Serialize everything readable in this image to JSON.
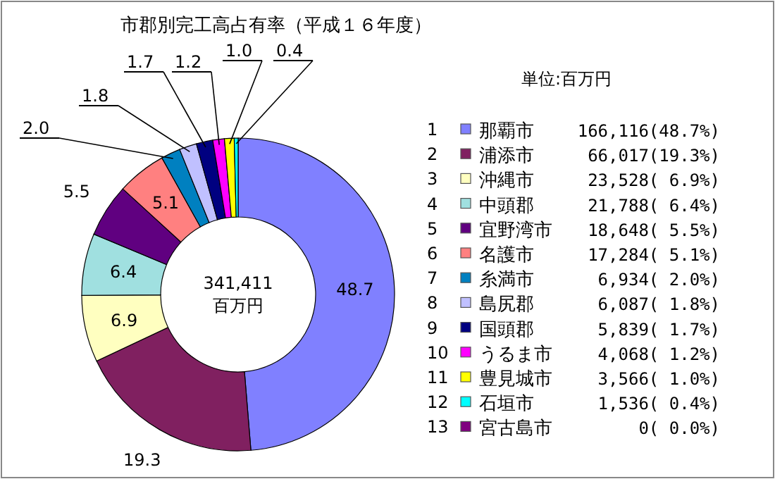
{
  "chart_data": {
    "type": "donut",
    "title": "市郡別完工高占有率（平成１６年度）",
    "categories": [
      "那覇市",
      "浦添市",
      "沖縄市",
      "中頭郡",
      "宜野湾市",
      "名護市",
      "糸満市",
      "島尻郡",
      "国頭郡",
      "うるま市",
      "豊見城市",
      "石垣市",
      "宮古島市"
    ],
    "values": [
      48.7,
      19.3,
      6.9,
      6.4,
      5.5,
      5.1,
      2.0,
      1.8,
      1.7,
      1.2,
      1.0,
      0.4,
      0
    ],
    "colors": [
      "#8080ff",
      "#802060",
      "#ffffc0",
      "#a0e0e0",
      "#600080",
      "#ff8080",
      "#0080c0",
      "#c0c0ff",
      "#000080",
      "#ff00ff",
      "#ffff00",
      "#00ffff",
      "#800080"
    ],
    "value_labels": [
      "48.7",
      "19.3",
      "6.9",
      "6.4",
      "5.5",
      "5.1",
      "2.0",
      "1.8",
      "1.7",
      "1.2",
      "1.0",
      "0.4",
      null
    ],
    "legend": "right",
    "annotations": [
      "単位:百万円",
      "341,411\n百万円",
      "1",
      "2",
      "3",
      "4",
      "5",
      "6",
      "7",
      "8",
      "9",
      "10",
      "11",
      "12",
      "13",
      "166,116(48.7%)",
      "66,017(19.3%)",
      "23,528( 6.9%)",
      "21,788( 6.4%)",
      "18,648( 5.5%)",
      "17,284( 5.1%)",
      "6,934( 2.0%)",
      "6,087( 1.8%)",
      "5,839( 1.7%)",
      "4,068( 1.2%)",
      "3,566( 1.0%)",
      "1,536( 0.4%)",
      "0( 0.0%)"
    ]
  }
}
